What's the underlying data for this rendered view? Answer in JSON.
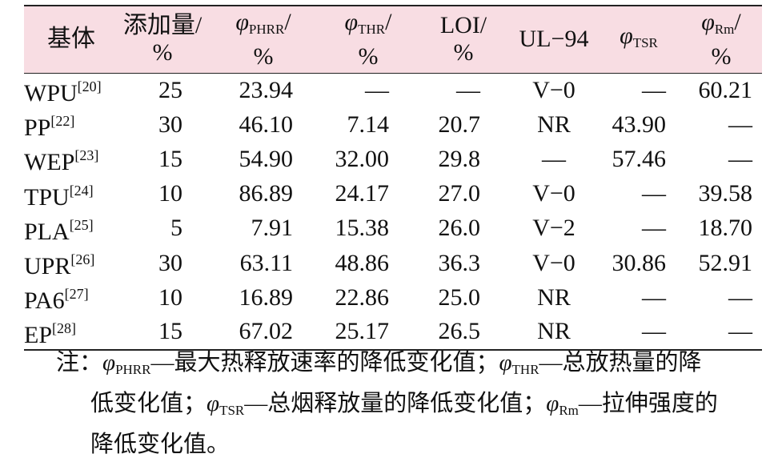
{
  "headers": {
    "base": "基体",
    "add": [
      "添加量/",
      "%"
    ],
    "phrr": {
      "sym": "φ",
      "sub": "PHRR",
      "suffix": "/",
      "unit": "%"
    },
    "thr": {
      "sym": "φ",
      "sub": "THR",
      "suffix": "/",
      "unit": "%"
    },
    "loi": [
      "LOI/",
      "%"
    ],
    "ul": "UL−94",
    "tsr": {
      "sym": "φ",
      "sub": "TSR"
    },
    "rm": {
      "sym": "φ",
      "sub": "Rm",
      "suffix": "/",
      "unit": "%"
    }
  },
  "rows": [
    {
      "base": "WPU",
      "ref": "[20]",
      "add": "25",
      "phrr": "23.94",
      "thr": "—",
      "loi": "—",
      "ul": "V−0",
      "tsr": "—",
      "rm": "60.21"
    },
    {
      "base": "PP",
      "ref": "[22]",
      "add": "30",
      "phrr": "46.10",
      "thr": "7.14",
      "loi": "20.7",
      "ul": "NR",
      "tsr": "43.90",
      "rm": "—"
    },
    {
      "base": "WEP",
      "ref": "[23]",
      "add": "15",
      "phrr": "54.90",
      "thr": "32.00",
      "loi": "29.8",
      "ul": "—",
      "tsr": "57.46",
      "rm": "—"
    },
    {
      "base": "TPU",
      "ref": "[24]",
      "add": "10",
      "phrr": "86.89",
      "thr": "24.17",
      "loi": "27.0",
      "ul": "V−0",
      "tsr": "—",
      "rm": "39.58"
    },
    {
      "base": "PLA",
      "ref": "[25]",
      "add": "5",
      "phrr": "7.91",
      "thr": "15.38",
      "loi": "26.0",
      "ul": "V−2",
      "tsr": "—",
      "rm": "18.70"
    },
    {
      "base": "UPR",
      "ref": "[26]",
      "add": "30",
      "phrr": "63.11",
      "thr": "48.86",
      "loi": "36.3",
      "ul": "V−0",
      "tsr": "30.86",
      "rm": "52.91"
    },
    {
      "base": "PA6",
      "ref": "[27]",
      "add": "10",
      "phrr": "16.89",
      "thr": "22.86",
      "loi": "25.0",
      "ul": "NR",
      "tsr": "—",
      "rm": "—"
    },
    {
      "base": "EP",
      "ref": "[28]",
      "add": "15",
      "phrr": "67.02",
      "thr": "25.17",
      "loi": "26.5",
      "ul": "NR",
      "tsr": "—",
      "rm": "—"
    }
  ],
  "note": {
    "prefix": "注：",
    "phrr_sym": "φ",
    "phrr_sub": "PHRR",
    "phrr_text": "—最大热释放速率的降低变化值；",
    "thr_sym": "φ",
    "thr_sub": "THR",
    "thr_text1": "—总放热量的降",
    "thr_text2": "低变化值；",
    "tsr_sym": "φ",
    "tsr_sub": "TSR",
    "tsr_text": "—总烟释放量的降低变化值；",
    "rm_sym": "φ",
    "rm_sub": "Rm",
    "rm_text1": "—拉伸强度的",
    "rm_text2": "降低变化值。"
  }
}
